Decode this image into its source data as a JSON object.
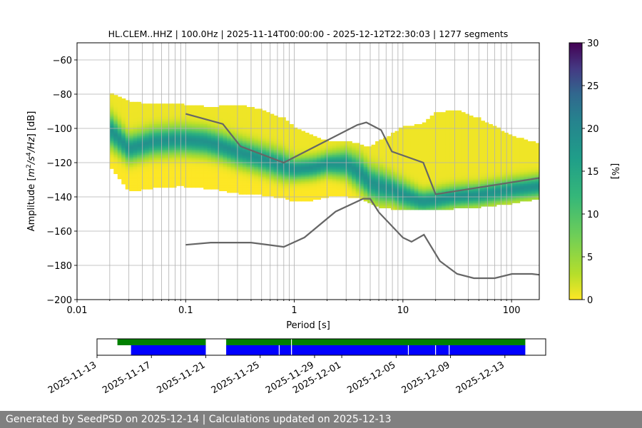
{
  "footer": {
    "text": "Generated by SeedPSD on 2025-12-14 | Calculations updated on 2025-12-13"
  },
  "chart_data": [
    {
      "type": "heatmap",
      "title": "HL.CLEM..HHZ | 100.0Hz | 2025-11-14T00:00:00 - 2025-12-12T22:30:03 | 1277 segments",
      "xlabel": "Period [s]",
      "ylabel": "Amplitude [m²/s⁴/Hz] [dB]",
      "xscale": "log",
      "xlim": [
        0.01,
        180
      ],
      "ylim": [
        -200,
        -50
      ],
      "x_ticks": [
        0.01,
        0.1,
        1,
        10,
        100
      ],
      "x_tick_labels": [
        "0.01",
        "0.1",
        "1",
        "10",
        "100"
      ],
      "y_ticks": [
        -200,
        -180,
        -160,
        -140,
        -120,
        -100,
        -80,
        -60
      ],
      "y_tick_labels": [
        "−200",
        "−180",
        "−160",
        "−140",
        "−120",
        "−100",
        "−80",
        "−60"
      ],
      "grid": true,
      "density_core": {
        "period": [
          0.02,
          0.03,
          0.05,
          0.08,
          0.1,
          0.15,
          0.2,
          0.3,
          0.5,
          0.8,
          1,
          1.5,
          2,
          3,
          4,
          5,
          6,
          8,
          10,
          15,
          20,
          30,
          50,
          100,
          180
        ],
        "mode_db": [
          -101,
          -112,
          -108,
          -107,
          -107,
          -108,
          -110,
          -114,
          -118,
          -122,
          -124,
          -123,
          -121,
          -121,
          -126,
          -132,
          -134,
          -136,
          -139,
          -143,
          -142,
          -140,
          -139,
          -136,
          -134
        ],
        "spread_db": [
          6,
          5,
          5,
          5,
          5,
          5,
          5,
          5,
          5,
          5,
          4,
          4,
          4,
          5,
          6,
          6,
          6,
          5,
          5,
          4,
          4,
          4,
          4,
          4,
          4
        ],
        "envelope_top_db": [
          -80,
          -85,
          -87,
          -86,
          -87,
          -88,
          -88,
          -87,
          -90,
          -95,
          -100,
          -105,
          -108,
          -108,
          -110,
          -112,
          -108,
          -104,
          -100,
          -98,
          -92,
          -90,
          -95,
          -105,
          -110
        ],
        "envelope_bottom_db": [
          -121,
          -136,
          -134,
          -133,
          -133,
          -134,
          -135,
          -137,
          -138,
          -140,
          -142,
          -141,
          -139,
          -139,
          -140,
          -143,
          -145,
          -146,
          -147,
          -147,
          -147,
          -146,
          -145,
          -143,
          -140
        ]
      },
      "noise_models": [
        {
          "name": "NHNM",
          "period": [
            0.1,
            0.22,
            0.32,
            0.8,
            3.8,
            4.6,
            6.3,
            7.9,
            15.4,
            20,
            354.8
          ],
          "db": [
            -91.5,
            -97.4,
            -110.5,
            -120,
            -98,
            -96.5,
            -101,
            -113.5,
            -120,
            -138.5,
            -126
          ]
        },
        {
          "name": "NLNM",
          "period": [
            0.1,
            0.17,
            0.4,
            0.8,
            1.24,
            2.4,
            4.3,
            5,
            6,
            10,
            12,
            15.6,
            21.9,
            31.6,
            45,
            70,
            101,
            154,
            180
          ],
          "db": [
            -168,
            -166.7,
            -166.7,
            -169.2,
            -163.7,
            -148.6,
            -141.1,
            -141.1,
            -149,
            -163.8,
            -166.2,
            -162.1,
            -177.5,
            -185,
            -187.5,
            -187.5,
            -185,
            -185,
            -185.5
          ]
        }
      ],
      "colorbar": {
        "label": "[%]",
        "range": [
          0,
          30
        ],
        "ticks": [
          0,
          5,
          10,
          15,
          20,
          25,
          30
        ]
      }
    },
    {
      "type": "timeline",
      "x_tick_labels": [
        "2025-11-13",
        "2025-11-17",
        "2025-11-21",
        "2025-11-25",
        "2025-11-29",
        "2025-12-01",
        "2025-12-05",
        "2025-12-09",
        "2025-12-13"
      ],
      "x_tick_days": [
        0,
        4,
        8,
        12,
        16,
        18,
        22,
        26,
        30
      ],
      "day0": "2025-11-13",
      "xlim_days": [
        0,
        33
      ],
      "green_spans": [
        [
          1.5,
          8.0
        ],
        [
          9.5,
          31.5
        ]
      ],
      "blue_spans": [
        [
          2.5,
          8.0
        ],
        [
          9.5,
          31.5
        ]
      ],
      "gaps": [
        13.4,
        14.3,
        22.9,
        24.9,
        25.9
      ]
    }
  ]
}
